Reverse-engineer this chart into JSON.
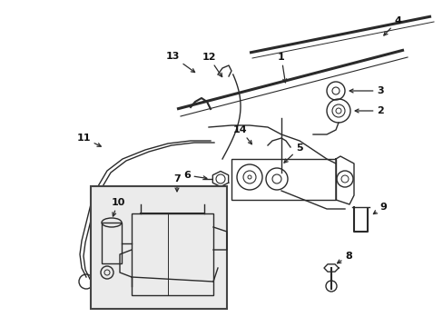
{
  "background_color": "#ffffff",
  "line_color": "#2a2a2a",
  "label_color": "#111111",
  "box_fill": "#ebebeb",
  "box_edge": "#444444",
  "fig_width": 4.89,
  "fig_height": 3.6,
  "dpi": 100
}
